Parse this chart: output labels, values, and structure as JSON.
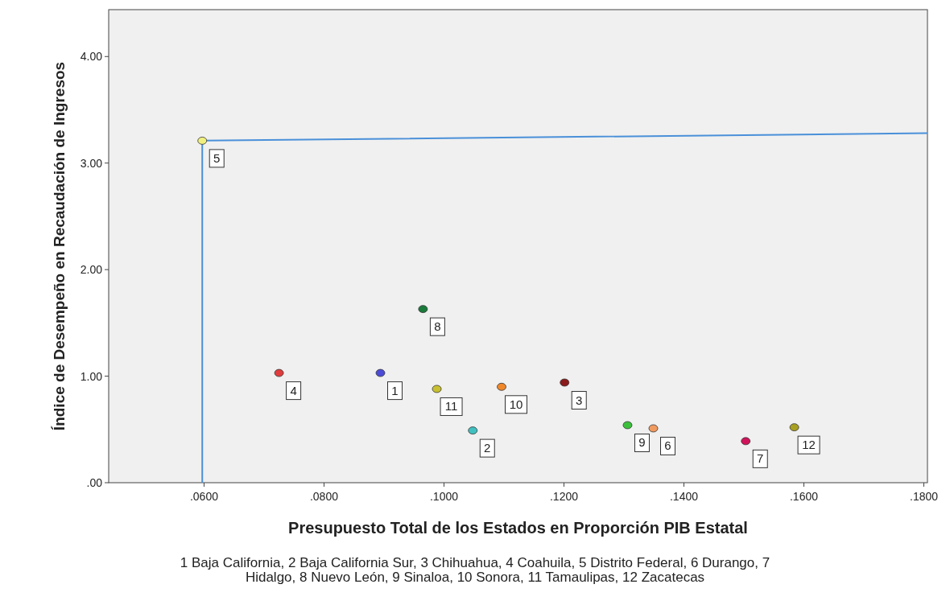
{
  "chart_data": {
    "type": "scatter",
    "xlabel": "Presupuesto Total de los Estados en Proporción PIB Estatal",
    "ylabel": "Índice de Desempeño en Recaudación de Ingresos",
    "xlim": [
      0.0441,
      0.1806
    ],
    "ylim": [
      0,
      4.44
    ],
    "xticks": [
      {
        "value": 0.06,
        "label": ".0600"
      },
      {
        "value": 0.08,
        "label": ".0800"
      },
      {
        "value": 0.1,
        "label": ".1000"
      },
      {
        "value": 0.12,
        "label": ".1200"
      },
      {
        "value": 0.14,
        "label": ".1400"
      },
      {
        "value": 0.16,
        "label": ".1600"
      },
      {
        "value": 0.18,
        "label": ".1800"
      }
    ],
    "yticks": [
      {
        "value": 0,
        "label": ".00"
      },
      {
        "value": 1,
        "label": "1.00"
      },
      {
        "value": 2,
        "label": "2.00"
      },
      {
        "value": 3,
        "label": "3.00"
      },
      {
        "value": 4,
        "label": "4.00"
      }
    ],
    "grid": false,
    "marker": "circle",
    "series": [
      {
        "type": "line",
        "marker": "none",
        "color": "#4a90d9",
        "x": [
          0.0597,
          0.0597,
          0.1806
        ],
        "values": [
          0,
          3.21,
          3.28
        ]
      },
      {
        "x": [
          0.0894,
          0.1048,
          0.1201,
          0.0725,
          0.0597,
          0.1349,
          0.1503,
          0.0965,
          0.1306,
          0.1096,
          0.0988,
          0.1584
        ],
        "values": [
          1.03,
          0.49,
          0.94,
          1.03,
          3.21,
          0.51,
          0.39,
          1.63,
          0.54,
          0.9,
          0.88,
          0.52
        ],
        "colors": [
          "#4b4bd8",
          "#40c0c0",
          "#8b1a1a",
          "#e03c3c",
          "#f0f080",
          "#f09a60",
          "#d0145a",
          "#1a7a3a",
          "#3cc03c",
          "#f0882a",
          "#c8c030",
          "#a8a020"
        ]
      }
    ],
    "annotations": [
      {
        "text": "1",
        "x": 0.0894,
        "y": 1.03
      },
      {
        "text": "2",
        "x": 0.1048,
        "y": 0.49
      },
      {
        "text": "3",
        "x": 0.1201,
        "y": 0.94
      },
      {
        "text": "4",
        "x": 0.0725,
        "y": 1.03
      },
      {
        "text": "5",
        "x": 0.0597,
        "y": 3.21
      },
      {
        "text": "6",
        "x": 0.1349,
        "y": 0.51
      },
      {
        "text": "7",
        "x": 0.1503,
        "y": 0.39
      },
      {
        "text": "8",
        "x": 0.0965,
        "y": 1.63
      },
      {
        "text": "9",
        "x": 0.1306,
        "y": 0.54
      },
      {
        "text": "10",
        "x": 0.1096,
        "y": 0.9
      },
      {
        "text": "11",
        "x": 0.0988,
        "y": 0.88
      },
      {
        "text": "12",
        "x": 0.1584,
        "y": 0.52
      },
      "1 Baja California, 2 Baja California Sur, 3 Chihuahua, 4 Coahuila, 5 Distrito Federal, 6 Durango, 7 Hidalgo, 8 Nuevo León, 9 Sinaloa, 10 Sonora, 11 Tamaulipas, 12 Zacatecas"
    ]
  }
}
